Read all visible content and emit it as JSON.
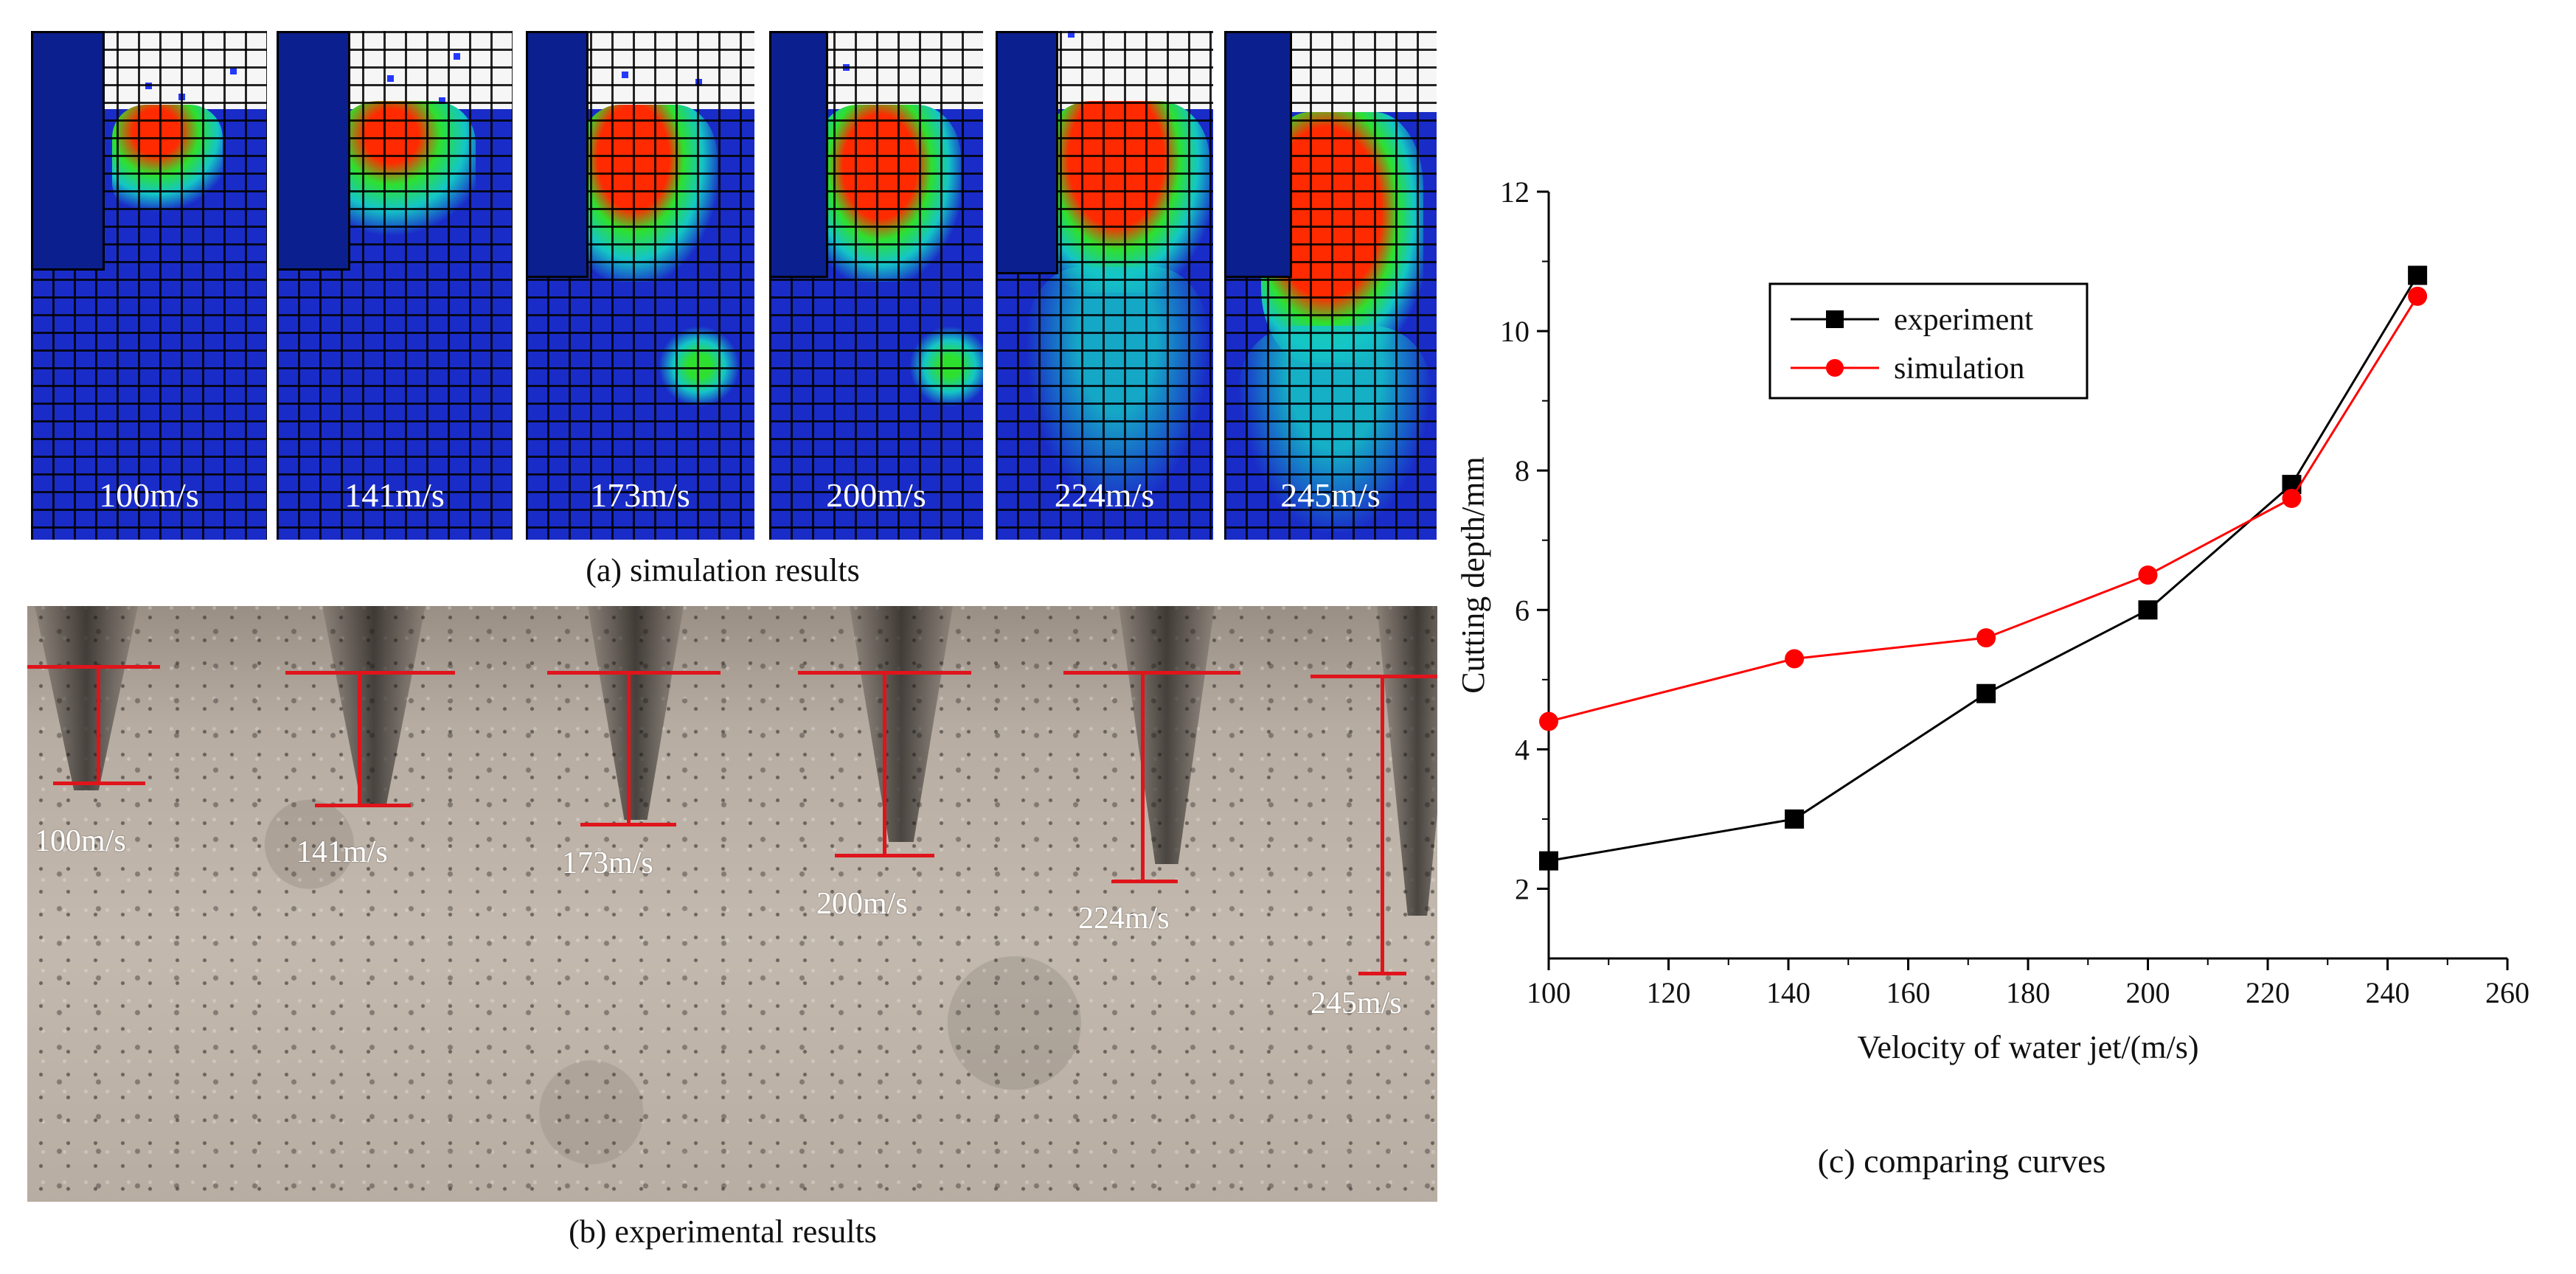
{
  "panels": {
    "a": {
      "caption": "(a) simulation results",
      "labels": [
        "100m/s",
        "141m/s",
        "173m/s",
        "200m/s",
        "224m/s",
        "245m/s"
      ]
    },
    "b": {
      "caption": "(b) experimental results",
      "labels": [
        "100m/s",
        "141m/s",
        "173m/s",
        "200m/s",
        "224m/s",
        "245m/s"
      ]
    },
    "c": {
      "caption": "(c) comparing curves"
    }
  },
  "colors": {
    "experiment": "#000000",
    "simulation": "#ff0000",
    "ruler": "#e0141b"
  },
  "chart_data": {
    "type": "line",
    "title": "",
    "xlabel": "Velocity of water jet/(m/s)",
    "ylabel": "Cutting depth/mm",
    "xlim": [
      100,
      260
    ],
    "ylim": [
      1,
      12
    ],
    "xticks": [
      100,
      120,
      140,
      160,
      180,
      200,
      220,
      240,
      260
    ],
    "yticks": [
      2,
      4,
      6,
      8,
      10,
      12
    ],
    "legend_position": "upper-left",
    "series": [
      {
        "name": "experiment",
        "marker": "square",
        "x": [
          100,
          141,
          173,
          200,
          224,
          245
        ],
        "values": [
          2.4,
          3.0,
          4.8,
          6.0,
          7.8,
          10.8
        ]
      },
      {
        "name": "simulation",
        "marker": "circle",
        "x": [
          100,
          141,
          173,
          200,
          224,
          245
        ],
        "values": [
          4.4,
          5.3,
          5.6,
          6.5,
          7.6,
          10.5
        ]
      }
    ]
  }
}
